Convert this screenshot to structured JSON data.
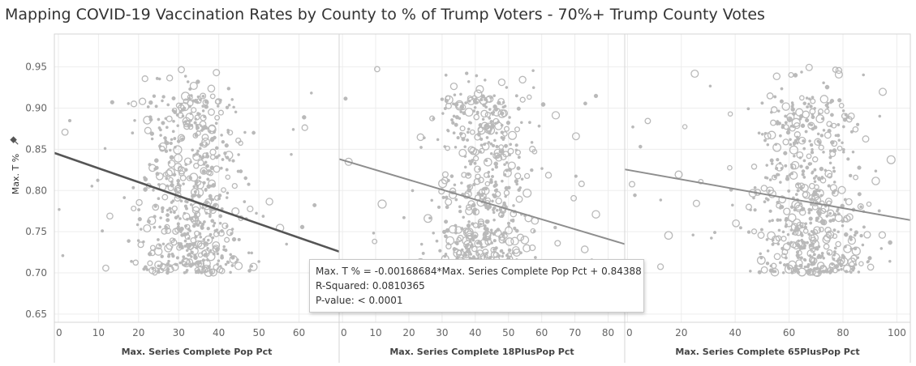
{
  "title": "Mapping COVID-19 Vaccination Rates by County to % of Trump Voters - 70%+ Trump County Votes",
  "colors": {
    "point": "#b9b9b9",
    "trend_active": "#555555",
    "trend": "#8e8e8e",
    "grid": "#ededed"
  },
  "tooltip": {
    "line1": "Max. T % = -0.00168684*Max. Series Complete Pop Pct + 0.84388",
    "line2": "R-Squared: 0.0810365",
    "line3": "P-value: < 0.0001"
  },
  "chart_data": {
    "type": "scatter",
    "ylabel": "Max. T %",
    "ylim": [
      0.64,
      0.99
    ],
    "yticks": [
      "0.65",
      "0.70",
      "0.75",
      "0.80",
      "0.85",
      "0.90",
      "0.95"
    ],
    "panels": [
      {
        "xlabel": "Max. Series Complete Pop Pct",
        "xlim": [
          -1,
          70
        ],
        "xticks": [
          "0",
          "10",
          "20",
          "30",
          "40",
          "50",
          "60"
        ],
        "trend": {
          "slope": -0.00168684,
          "intercept": 0.84388,
          "highlighted": true
        },
        "points": {
          "count": 620,
          "x_center": 33,
          "x_spread": 9,
          "x_min": 0,
          "x_max": 64,
          "y_min": 0.7,
          "y_max": 0.95
        }
      },
      {
        "xlabel": "Max. Series Complete 18PlusPop Pct",
        "xlim": [
          -1,
          85
        ],
        "xticks": [
          "0",
          "10",
          "20",
          "30",
          "40",
          "50",
          "60",
          "70",
          "80"
        ],
        "trend": {
          "slope": -0.0012,
          "intercept": 0.837,
          "highlighted": false
        },
        "points": {
          "count": 620,
          "x_center": 43,
          "x_spread": 10,
          "x_min": 0,
          "x_max": 78,
          "y_min": 0.7,
          "y_max": 0.95
        }
      },
      {
        "xlabel": "Max. Series Complete 65PlusPop Pct",
        "xlim": [
          -1,
          105
        ],
        "xticks": [
          "0",
          "20",
          "40",
          "60",
          "80",
          "100"
        ],
        "trend": {
          "slope": -0.00058,
          "intercept": 0.825,
          "highlighted": false
        },
        "points": {
          "count": 620,
          "x_center": 68,
          "x_spread": 14,
          "x_min": 0,
          "x_max": 100,
          "y_min": 0.7,
          "y_max": 0.95
        }
      }
    ]
  }
}
